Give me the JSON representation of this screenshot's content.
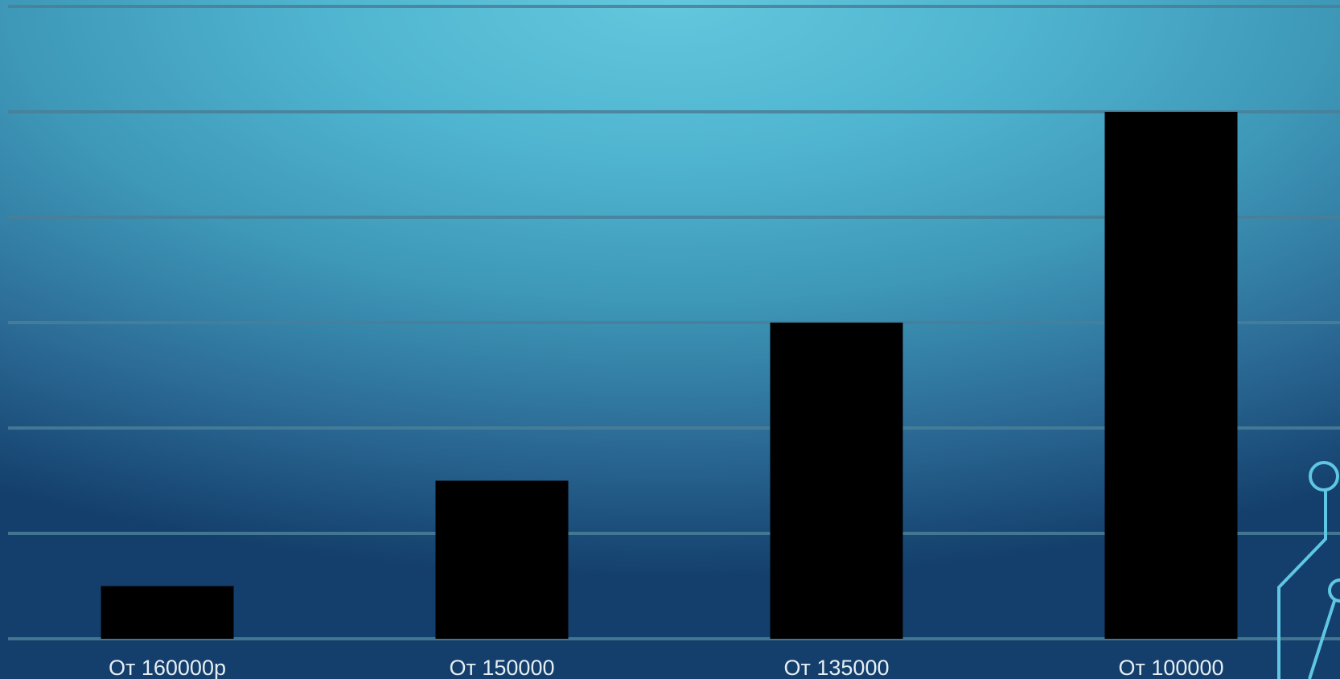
{
  "chart_data": {
    "type": "bar",
    "categories": [
      "От 160000р",
      "От 150000",
      "От 135000",
      "От 100000"
    ],
    "values": [
      0.5,
      1.5,
      3,
      5
    ],
    "ylim": [
      0,
      6
    ],
    "grid": true,
    "bar_color": "#000000",
    "gridline_color": "#4a7f98",
    "label_color": "#e6eef3"
  }
}
